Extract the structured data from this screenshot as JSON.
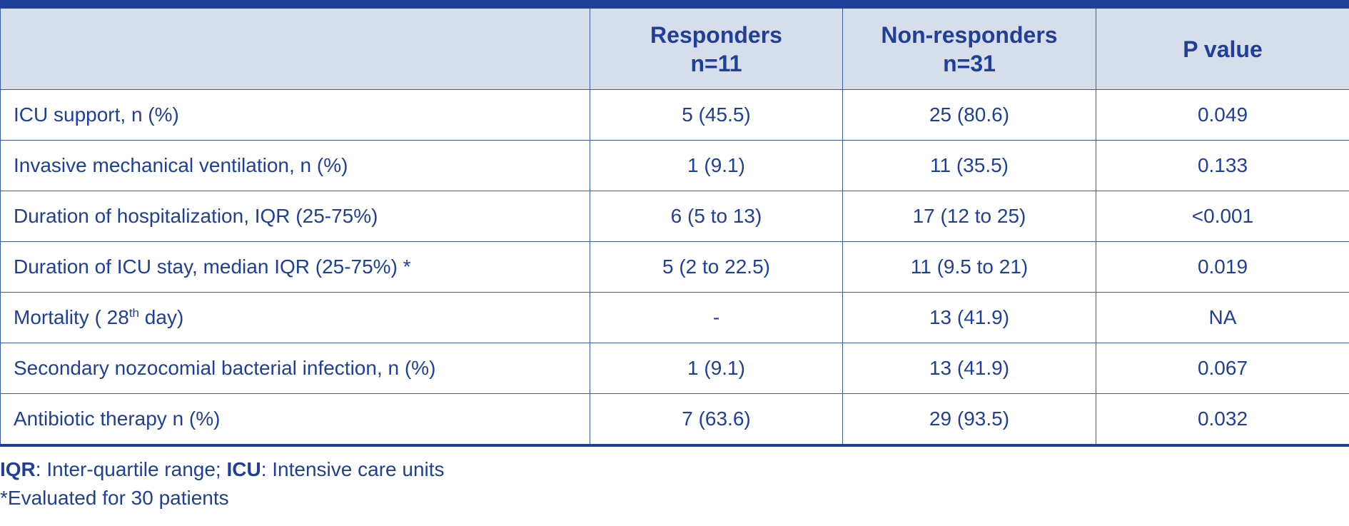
{
  "table": {
    "headers": [
      {
        "line1": "",
        "line2": ""
      },
      {
        "line1": "Responders",
        "line2": "n=11"
      },
      {
        "line1": "Non-responders",
        "line2": "n=31"
      },
      {
        "line1": "P value",
        "line2": ""
      }
    ],
    "rows": [
      {
        "label": "ICU support, n (%)",
        "responders": "5 (45.5)",
        "non_responders": "25 (80.6)",
        "p_value": "0.049"
      },
      {
        "label": "Invasive mechanical ventilation, n (%)",
        "responders": "1 (9.1)",
        "non_responders": "11 (35.5)",
        "p_value": "0.133"
      },
      {
        "label": "Duration of hospitalization, IQR (25-75%)",
        "responders": "6 (5 to 13)",
        "non_responders": "17 (12 to 25)",
        "p_value": "<0.001"
      },
      {
        "label": "Duration of ICU stay, median IQR (25-75%) *",
        "responders": "5 (2 to 22.5)",
        "non_responders": "11 (9.5 to 21)",
        "p_value": "0.019"
      },
      {
        "label_pre": "Mortality ( 28",
        "label_sup": "th",
        "label_post": " day)",
        "responders": "-",
        "non_responders": "13 (41.9)",
        "p_value": "NA"
      },
      {
        "label": "Secondary nozocomial bacterial infection, n (%)",
        "responders": "1 (9.1)",
        "non_responders": "13 (41.9)",
        "p_value": "0.067"
      },
      {
        "label": "Antibiotic therapy n (%)",
        "responders": "7 (63.6)",
        "non_responders": "29 (93.5)",
        "p_value": "0.032"
      }
    ]
  },
  "footnotes": {
    "abbr1": "IQR",
    "def1": ": Inter-quartile range; ",
    "abbr2": "ICU",
    "def2": ": Intensive care units",
    "note": "*Evaluated for 30 patients"
  },
  "colors": {
    "text": "#1f3f99",
    "header_bg": "#d6deeb",
    "border": "#3d5aa6"
  }
}
